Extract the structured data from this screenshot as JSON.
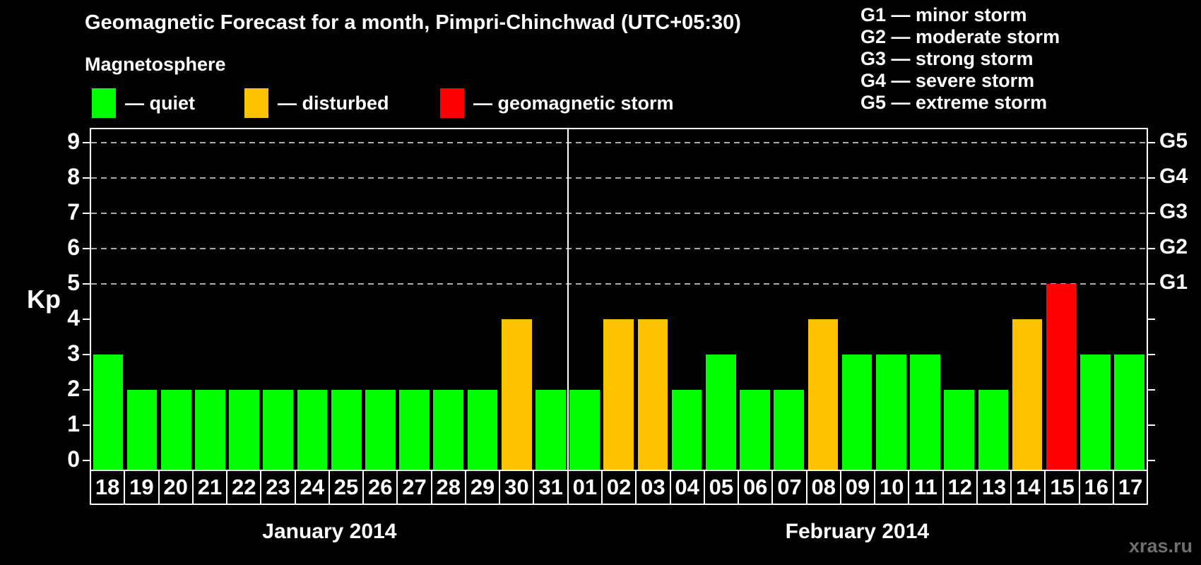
{
  "title": "Geomagnetic Forecast for a month, Pimpri-Chinchwad (UTC+05:30)",
  "legend": {
    "heading": "Magnetosphere",
    "items": [
      {
        "key": "quiet",
        "label": "— quiet",
        "color": "#00ff00"
      },
      {
        "key": "disturbed",
        "label": "— disturbed",
        "color": "#ffc200"
      },
      {
        "key": "storm",
        "label": "— geomagnetic storm",
        "color": "#ff0000"
      }
    ]
  },
  "g_scale_legend": [
    "G1 — minor storm",
    "G2 — moderate storm",
    "G3 — strong storm",
    "G4 — severe storm",
    "G5 — extreme storm"
  ],
  "watermark": "xras.ru",
  "chart_data": {
    "type": "bar",
    "title": "Geomagnetic Forecast for a month, Pimpri-Chinchwad (UTC+05:30)",
    "xlabel": "",
    "ylabel": "Kp",
    "ylim": [
      0,
      9
    ],
    "y_ticks": [
      0,
      1,
      2,
      3,
      4,
      5,
      6,
      7,
      8,
      9
    ],
    "gridlines_at": [
      5,
      6,
      7,
      8,
      9
    ],
    "grid_style": "dashed-gray",
    "legend_position": "top-left",
    "right_axis": [
      {
        "label": "G1",
        "kp": 5
      },
      {
        "label": "G2",
        "kp": 6
      },
      {
        "label": "G3",
        "kp": 7
      },
      {
        "label": "G4",
        "kp": 8
      },
      {
        "label": "G5",
        "kp": 9
      }
    ],
    "months": [
      {
        "label": "January 2014",
        "days": 14
      },
      {
        "label": "February 2014",
        "days": 17
      }
    ],
    "categories": [
      "18",
      "19",
      "20",
      "21",
      "22",
      "23",
      "24",
      "25",
      "26",
      "27",
      "28",
      "29",
      "30",
      "31",
      "01",
      "02",
      "03",
      "04",
      "05",
      "06",
      "07",
      "08",
      "09",
      "10",
      "11",
      "12",
      "13",
      "14",
      "15",
      "16",
      "17"
    ],
    "values": [
      3,
      2,
      2,
      2,
      2,
      2,
      2,
      2,
      2,
      2,
      2,
      2,
      4,
      2,
      2,
      4,
      4,
      2,
      3,
      2,
      2,
      4,
      3,
      3,
      3,
      2,
      2,
      4,
      5,
      3,
      3
    ],
    "statuses": [
      "quiet",
      "quiet",
      "quiet",
      "quiet",
      "quiet",
      "quiet",
      "quiet",
      "quiet",
      "quiet",
      "quiet",
      "quiet",
      "quiet",
      "disturbed",
      "quiet",
      "quiet",
      "disturbed",
      "disturbed",
      "quiet",
      "quiet",
      "quiet",
      "quiet",
      "disturbed",
      "quiet",
      "quiet",
      "quiet",
      "quiet",
      "quiet",
      "disturbed",
      "storm",
      "quiet",
      "quiet"
    ],
    "colors": {
      "quiet": "#00ff00",
      "disturbed": "#ffc200",
      "storm": "#ff0000"
    }
  }
}
